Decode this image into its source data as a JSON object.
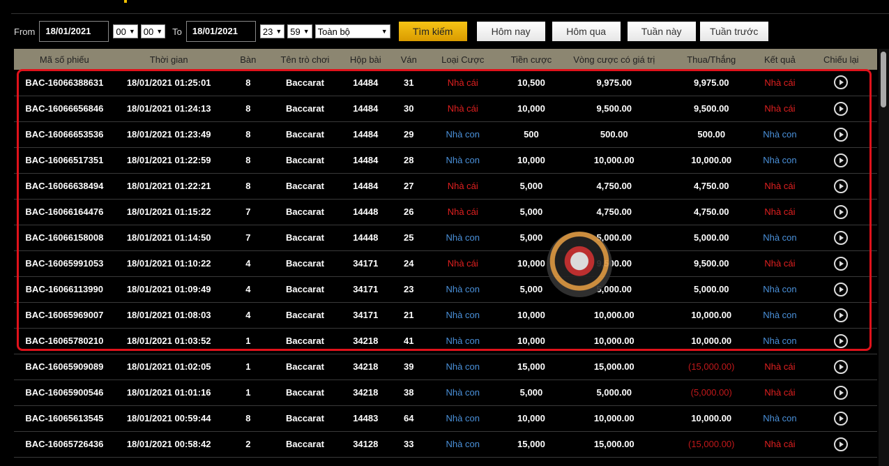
{
  "filter": {
    "from_label": "From",
    "from_date": "18/01/2021",
    "from_hour": "00",
    "from_min": "00",
    "to_label": "To",
    "to_date": "18/01/2021",
    "to_hour": "23",
    "to_min": "59",
    "type": "Toàn bộ",
    "search": "Tìm kiếm",
    "today": "Hôm nay",
    "yesterday": "Hôm qua",
    "this_week": "Tuần này",
    "last_week": "Tuần trước"
  },
  "columns": [
    "Mã số phiếu",
    "Thời gian",
    "Bàn",
    "Tên trò chơi",
    "Hộp bài",
    "Ván",
    "Loại Cược",
    "Tiền cược",
    "Vòng cược có giá trị",
    "Thua/Thắng",
    "Kết quả",
    "Chiếu lại"
  ],
  "colors": {
    "accent": "#f7c415",
    "header_bg": "#8c8671",
    "banker": "#e02020",
    "player": "#4a90d9",
    "highlight": "#e0121b"
  },
  "rows": [
    [
      "BAC-16066388631",
      "18/01/2021 01:25:01",
      "8",
      "Baccarat",
      "14484",
      "31",
      "Nhà cái",
      "10,500",
      "9,975.00",
      "9,975.00",
      "Nhà cái"
    ],
    [
      "BAC-16066656846",
      "18/01/2021 01:24:13",
      "8",
      "Baccarat",
      "14484",
      "30",
      "Nhà cái",
      "10,000",
      "9,500.00",
      "9,500.00",
      "Nhà cái"
    ],
    [
      "BAC-16066653536",
      "18/01/2021 01:23:49",
      "8",
      "Baccarat",
      "14484",
      "29",
      "Nhà con",
      "500",
      "500.00",
      "500.00",
      "Nhà con"
    ],
    [
      "BAC-16066517351",
      "18/01/2021 01:22:59",
      "8",
      "Baccarat",
      "14484",
      "28",
      "Nhà con",
      "10,000",
      "10,000.00",
      "10,000.00",
      "Nhà con"
    ],
    [
      "BAC-16066638494",
      "18/01/2021 01:22:21",
      "8",
      "Baccarat",
      "14484",
      "27",
      "Nhà cái",
      "5,000",
      "4,750.00",
      "4,750.00",
      "Nhà cái"
    ],
    [
      "BAC-16066164476",
      "18/01/2021 01:15:22",
      "7",
      "Baccarat",
      "14448",
      "26",
      "Nhà cái",
      "5,000",
      "4,750.00",
      "4,750.00",
      "Nhà cái"
    ],
    [
      "BAC-16066158008",
      "18/01/2021 01:14:50",
      "7",
      "Baccarat",
      "14448",
      "25",
      "Nhà con",
      "5,000",
      "5,000.00",
      "5,000.00",
      "Nhà con"
    ],
    [
      "BAC-16065991053",
      "18/01/2021 01:10:22",
      "4",
      "Baccarat",
      "34171",
      "24",
      "Nhà cái",
      "10,000",
      "9,500.00",
      "9,500.00",
      "Nhà cái"
    ],
    [
      "BAC-16066113990",
      "18/01/2021 01:09:49",
      "4",
      "Baccarat",
      "34171",
      "23",
      "Nhà con",
      "5,000",
      "5,000.00",
      "5,000.00",
      "Nhà con"
    ],
    [
      "BAC-16065969007",
      "18/01/2021 01:08:03",
      "4",
      "Baccarat",
      "34171",
      "21",
      "Nhà con",
      "10,000",
      "10,000.00",
      "10,000.00",
      "Nhà con"
    ],
    [
      "BAC-16065780210",
      "18/01/2021 01:03:52",
      "1",
      "Baccarat",
      "34218",
      "41",
      "Nhà con",
      "10,000",
      "10,000.00",
      "10,000.00",
      "Nhà con"
    ],
    [
      "BAC-16065909089",
      "18/01/2021 01:02:05",
      "1",
      "Baccarat",
      "34218",
      "39",
      "Nhà con",
      "15,000",
      "15,000.00",
      "(15,000.00)",
      "Nhà cái"
    ],
    [
      "BAC-16065900546",
      "18/01/2021 01:01:16",
      "1",
      "Baccarat",
      "34218",
      "38",
      "Nhà con",
      "5,000",
      "5,000.00",
      "(5,000.00)",
      "Nhà cái"
    ],
    [
      "BAC-16065613545",
      "18/01/2021 00:59:44",
      "8",
      "Baccarat",
      "14483",
      "64",
      "Nhà con",
      "10,000",
      "10,000.00",
      "10,000.00",
      "Nhà con"
    ],
    [
      "BAC-16065726436",
      "18/01/2021 00:58:42",
      "2",
      "Baccarat",
      "34128",
      "33",
      "Nhà con",
      "15,000",
      "15,000.00",
      "(15,000.00)",
      "Nhà cái"
    ]
  ]
}
